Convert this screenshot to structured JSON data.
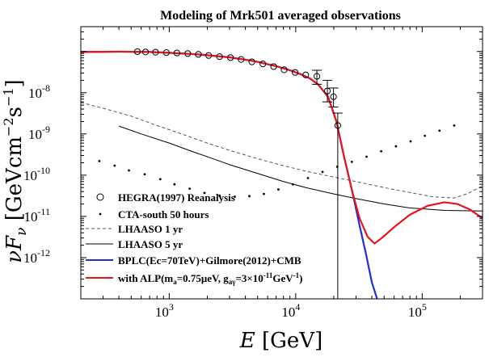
{
  "chart_data": {
    "type": "line",
    "title": "Modeling of Mrk501 averaged observations",
    "xlabel": "E [GeV]",
    "ylabel": "νF_ν [GeVcm^-2s^-1]",
    "x_scale": "log",
    "y_scale": "log",
    "xlim": [
      200,
      300000
    ],
    "ylim": [
      1e-13,
      4e-07
    ],
    "x_ticks": [
      {
        "value": 1000,
        "base": "10",
        "exp": "3"
      },
      {
        "value": 10000,
        "base": "10",
        "exp": "4"
      },
      {
        "value": 100000,
        "base": "10",
        "exp": "5"
      }
    ],
    "y_ticks": [
      {
        "value": 1e-12,
        "base": "10",
        "exp": "-12"
      },
      {
        "value": 1e-11,
        "base": "10",
        "exp": "-11"
      },
      {
        "value": 1e-10,
        "base": "10",
        "exp": "-10"
      },
      {
        "value": 1e-09,
        "base": "10",
        "exp": "-9"
      },
      {
        "value": 1e-08,
        "base": "10",
        "exp": "-8"
      }
    ],
    "series": [
      {
        "name": "HEGRA(1997) Reanalysis",
        "style": "markers-errorbars",
        "color": "#000000",
        "points": [
          {
            "x": 560,
            "y": 9.9e-08
          },
          {
            "x": 650,
            "y": 9.7e-08
          },
          {
            "x": 780,
            "y": 9.6e-08
          },
          {
            "x": 950,
            "y": 9.4e-08
          },
          {
            "x": 1150,
            "y": 9.2e-08
          },
          {
            "x": 1400,
            "y": 8.9e-08
          },
          {
            "x": 1700,
            "y": 8.5e-08
          },
          {
            "x": 2050,
            "y": 8e-08
          },
          {
            "x": 2500,
            "y": 7.5e-08
          },
          {
            "x": 3050,
            "y": 7.1e-08
          },
          {
            "x": 3700,
            "y": 6.4e-08
          },
          {
            "x": 4500,
            "y": 5.6e-08
          },
          {
            "x": 5500,
            "y": 5e-08
          },
          {
            "x": 6700,
            "y": 4.3e-08
          },
          {
            "x": 8100,
            "y": 3.6e-08
          },
          {
            "x": 9900,
            "y": 3.1e-08
          },
          {
            "x": 12000,
            "y": 2.7e-08
          },
          {
            "x": 14700,
            "y": 2.5e-08,
            "ylo": 1.6e-08,
            "yhi": 3.5e-08
          },
          {
            "x": 17800,
            "y": 1.1e-08,
            "ylo": 6e-09,
            "yhi": 2e-08
          },
          {
            "x": 19900,
            "y": 8e-09,
            "ylo": 4.5e-09,
            "yhi": 1.3e-08
          },
          {
            "x": 21500,
            "y": 1.6e-09,
            "ylo": 1e-13,
            "yhi": 3.2e-09
          }
        ]
      },
      {
        "name": "CTA-south 50 hours",
        "style": "dots",
        "color": "#000000",
        "points": [
          {
            "x": 280,
            "y": 2.2e-10
          },
          {
            "x": 370,
            "y": 1.7e-10
          },
          {
            "x": 480,
            "y": 1.3e-10
          },
          {
            "x": 640,
            "y": 1.05e-10
          },
          {
            "x": 850,
            "y": 8e-11
          },
          {
            "x": 1100,
            "y": 6e-11
          },
          {
            "x": 1450,
            "y": 4.7e-11
          },
          {
            "x": 1900,
            "y": 3.7e-11
          },
          {
            "x": 2500,
            "y": 3.2e-11
          },
          {
            "x": 3300,
            "y": 3e-11
          },
          {
            "x": 4300,
            "y": 3.1e-11
          },
          {
            "x": 5600,
            "y": 3.5e-11
          },
          {
            "x": 7300,
            "y": 4.5e-11
          },
          {
            "x": 9500,
            "y": 6e-11
          },
          {
            "x": 12500,
            "y": 8.5e-11
          },
          {
            "x": 16300,
            "y": 1.2e-10
          },
          {
            "x": 21300,
            "y": 1.6e-10
          },
          {
            "x": 27800,
            "y": 2.1e-10
          },
          {
            "x": 36300,
            "y": 2.8e-10
          },
          {
            "x": 47400,
            "y": 3.8e-10
          },
          {
            "x": 62000,
            "y": 5e-10
          },
          {
            "x": 81000,
            "y": 6.6e-10
          },
          {
            "x": 105000,
            "y": 9e-10
          },
          {
            "x": 137000,
            "y": 1.2e-09
          },
          {
            "x": 179000,
            "y": 1.6e-09
          }
        ]
      },
      {
        "name": "LHAASO 1 yr",
        "style": "dashed",
        "color": "#555555",
        "points": [
          {
            "x": 200,
            "y": 5.8e-09
          },
          {
            "x": 300,
            "y": 4.2e-09
          },
          {
            "x": 500,
            "y": 2.7e-09
          },
          {
            "x": 800,
            "y": 1.6e-09
          },
          {
            "x": 1200,
            "y": 1.05e-09
          },
          {
            "x": 2000,
            "y": 6e-10
          },
          {
            "x": 3000,
            "y": 4e-10
          },
          {
            "x": 5000,
            "y": 2.5e-10
          },
          {
            "x": 8000,
            "y": 1.7e-10
          },
          {
            "x": 12000,
            "y": 1.25e-10
          },
          {
            "x": 20000,
            "y": 9e-11
          },
          {
            "x": 30000,
            "y": 7e-11
          },
          {
            "x": 50000,
            "y": 5e-11
          },
          {
            "x": 80000,
            "y": 3.8e-11
          },
          {
            "x": 120000,
            "y": 3e-11
          },
          {
            "x": 180000,
            "y": 2.8e-11
          },
          {
            "x": 230000,
            "y": 3.6e-11
          },
          {
            "x": 300000,
            "y": 5.5e-11
          }
        ]
      },
      {
        "name": "LHAASO 5 yr",
        "style": "solid",
        "color": "#000000",
        "points": [
          {
            "x": 400,
            "y": 1.55e-09
          },
          {
            "x": 600,
            "y": 1e-09
          },
          {
            "x": 1000,
            "y": 6e-10
          },
          {
            "x": 1500,
            "y": 3.8e-10
          },
          {
            "x": 2000,
            "y": 2.8e-10
          },
          {
            "x": 3000,
            "y": 1.8e-10
          },
          {
            "x": 5000,
            "y": 1.1e-10
          },
          {
            "x": 8000,
            "y": 7e-11
          },
          {
            "x": 12000,
            "y": 5e-11
          },
          {
            "x": 20000,
            "y": 3.5e-11
          },
          {
            "x": 30000,
            "y": 2.7e-11
          },
          {
            "x": 50000,
            "y": 2e-11
          },
          {
            "x": 80000,
            "y": 1.6e-11
          },
          {
            "x": 150000,
            "y": 1.4e-11
          },
          {
            "x": 300000,
            "y": 1.35e-11
          }
        ]
      },
      {
        "name": "BPLC(Ec=70TeV)+Gilmore(2012)+CMB",
        "style": "solid",
        "color": "#1f2fd6",
        "points": [
          {
            "x": 200,
            "y": 9.7e-08
          },
          {
            "x": 400,
            "y": 9.9e-08
          },
          {
            "x": 700,
            "y": 9.7e-08
          },
          {
            "x": 1000,
            "y": 9.3e-08
          },
          {
            "x": 1500,
            "y": 8.7e-08
          },
          {
            "x": 2000,
            "y": 8.1e-08
          },
          {
            "x": 3000,
            "y": 7.2e-08
          },
          {
            "x": 4000,
            "y": 6.3e-08
          },
          {
            "x": 5000,
            "y": 5.6e-08
          },
          {
            "x": 7000,
            "y": 4.4e-08
          },
          {
            "x": 9000,
            "y": 3.5e-08
          },
          {
            "x": 11000,
            "y": 2.8e-08
          },
          {
            "x": 13000,
            "y": 2.2e-08
          },
          {
            "x": 15000,
            "y": 1.6e-08
          },
          {
            "x": 18000,
            "y": 8e-09
          },
          {
            "x": 21000,
            "y": 2e-09
          },
          {
            "x": 24000,
            "y": 3e-10
          },
          {
            "x": 28000,
            "y": 4e-11
          },
          {
            "x": 32000,
            "y": 6e-12
          },
          {
            "x": 36000,
            "y": 1.2e-12
          },
          {
            "x": 40000,
            "y": 2.5e-13
          },
          {
            "x": 44000,
            "y": 1e-13
          }
        ]
      },
      {
        "name": "with ALP(m_a=0.75μeV, g_aγ=3×10^-11GeV^-1)",
        "style": "solid",
        "color": "#e8141c",
        "points": [
          {
            "x": 200,
            "y": 9.7e-08
          },
          {
            "x": 400,
            "y": 9.9e-08
          },
          {
            "x": 700,
            "y": 9.7e-08
          },
          {
            "x": 1000,
            "y": 9.3e-08
          },
          {
            "x": 1500,
            "y": 8.7e-08
          },
          {
            "x": 2000,
            "y": 8.1e-08
          },
          {
            "x": 3000,
            "y": 7.2e-08
          },
          {
            "x": 4000,
            "y": 6.3e-08
          },
          {
            "x": 5000,
            "y": 5.6e-08
          },
          {
            "x": 7000,
            "y": 4.4e-08
          },
          {
            "x": 9000,
            "y": 3.5e-08
          },
          {
            "x": 11000,
            "y": 2.8e-08
          },
          {
            "x": 13000,
            "y": 2.2e-08
          },
          {
            "x": 15000,
            "y": 1.6e-08
          },
          {
            "x": 18000,
            "y": 8e-09
          },
          {
            "x": 21000,
            "y": 2e-09
          },
          {
            "x": 24000,
            "y": 3e-10
          },
          {
            "x": 28000,
            "y": 4e-11
          },
          {
            "x": 32000,
            "y": 9e-12
          },
          {
            "x": 37000,
            "y": 3.2e-12
          },
          {
            "x": 42000,
            "y": 2.2e-12
          },
          {
            "x": 48000,
            "y": 3e-12
          },
          {
            "x": 60000,
            "y": 5.5e-12
          },
          {
            "x": 80000,
            "y": 1.1e-11
          },
          {
            "x": 110000,
            "y": 1.8e-11
          },
          {
            "x": 150000,
            "y": 2.2e-11
          },
          {
            "x": 190000,
            "y": 2e-11
          },
          {
            "x": 240000,
            "y": 1.45e-11
          },
          {
            "x": 300000,
            "y": 9e-12
          }
        ]
      }
    ],
    "vertical_line": {
      "x": 21500,
      "y_from": 1e-13,
      "y_to": 3.2e-09
    },
    "legend": {
      "position": "bottom-left",
      "items": [
        {
          "label": "HEGRA(1997) Reanalysis",
          "symbol": "circle",
          "color": "#000000"
        },
        {
          "label": "CTA-south 50 hours",
          "symbol": "dot",
          "color": "#000000"
        },
        {
          "label": "LHAASO 1 yr",
          "symbol": "dashed",
          "color": "#555555"
        },
        {
          "label": "LHAASO 5 yr",
          "symbol": "line",
          "color": "#000000"
        },
        {
          "label": "BPLC(Ec=70TeV)+Gilmore(2012)+CMB",
          "symbol": "line",
          "color": "#1f2fd6"
        },
        {
          "label": "with ALP(m",
          "label_sub1": "a",
          "label_mid": "=0.75μeV, g",
          "label_sub2": "aγ",
          "label_mid2": "=3×10",
          "label_sup": "-11",
          "label_end": "GeV",
          "label_sup2": "-1",
          "label_close": ")",
          "symbol": "line",
          "color": "#e8141c"
        }
      ]
    }
  }
}
